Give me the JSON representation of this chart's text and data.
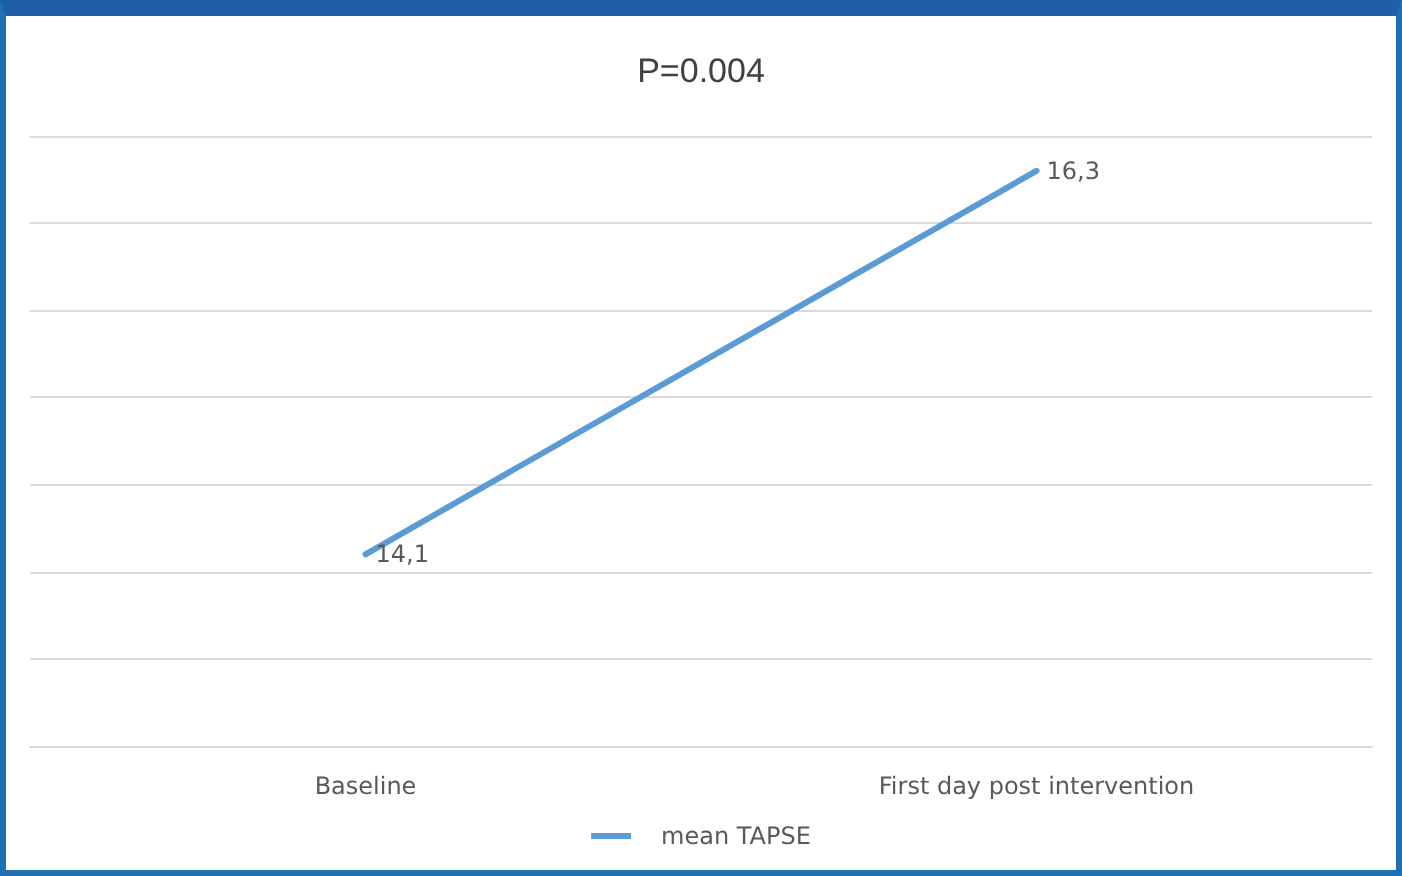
{
  "chart_data": {
    "type": "line",
    "title": "P=0.004",
    "categories": [
      "Baseline",
      "First day post intervention"
    ],
    "series": [
      {
        "name": "mean TAPSE",
        "color": "#5b9bd5",
        "values": [
          14.1,
          16.3
        ],
        "value_labels": [
          "14,1",
          "16,3"
        ]
      }
    ],
    "ylim": [
      13,
      16.5
    ],
    "yticks": [
      {
        "value": 13,
        "label": null
      },
      {
        "value": 13.5,
        "label": null
      },
      {
        "value": 14,
        "label": null
      },
      {
        "value": 14.5,
        "label": null
      },
      {
        "value": 15,
        "label": null
      },
      {
        "value": 15.5,
        "label": null
      },
      {
        "value": 16,
        "label": null
      },
      {
        "value": 16.5,
        "label": null
      }
    ],
    "tick_labels": "x",
    "grid": "y",
    "legend": "bottom",
    "marker": "none",
    "line_style": "solid"
  }
}
